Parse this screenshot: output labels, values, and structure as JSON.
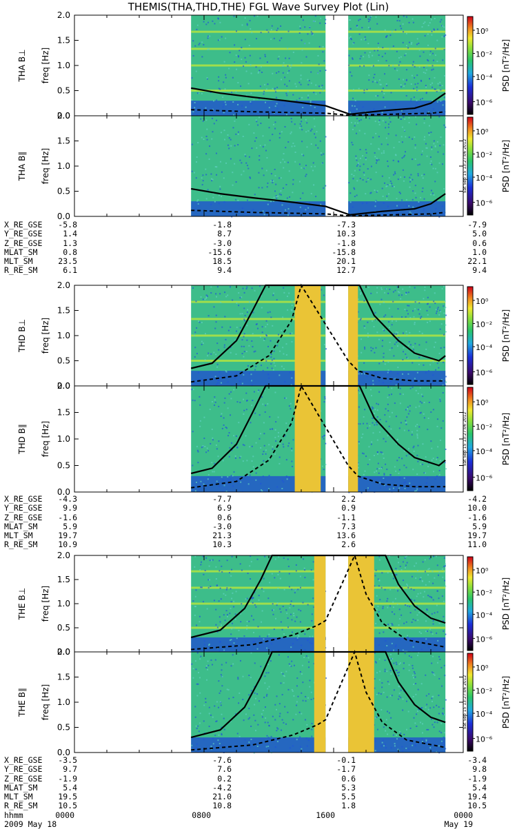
{
  "title": "THEMIS(THA,THD,THE) FGL Wave Survey Plot (Lin)",
  "colors": {
    "background": "#ffffff",
    "spectrogram_base": "#3dbd8a",
    "noise_blue": "#1e4bd2",
    "band_yellow": "#b9e63c",
    "curve": "#000000"
  },
  "colorbar": {
    "label": "PSD [nT²/Hz]",
    "ticks": [
      "10⁰",
      "10⁻²",
      "10⁻⁴",
      "10⁻⁶"
    ],
    "timestamp": "Sat Sep 15 13:27:06 2012"
  },
  "chart_data": {
    "type": "heatmap",
    "x_axis": {
      "label": "hhmm",
      "ticks": [
        "0000",
        "0800",
        "1600",
        "0000"
      ],
      "dates": [
        "2009 May 18",
        "",
        "",
        "May 19"
      ],
      "range_hours": [
        0,
        24
      ]
    },
    "data_intervals_hours": [
      [
        7.2,
        15.5
      ],
      [
        16.9,
        22.9
      ]
    ],
    "panels": [
      {
        "probe": "THA",
        "component": "B⊥",
        "ylabel": "THA B⊥",
        "yunit": "freq [Hz]",
        "ylim": [
          0,
          2.0
        ],
        "yticks": [
          "0.0",
          "0.5",
          "1.0",
          "1.5",
          "2.0"
        ],
        "bright_columns_hours": [],
        "solid_curve": {
          "x": [
            7.2,
            9,
            11,
            13,
            15.5,
            17,
            19,
            21,
            22,
            22.9
          ],
          "y": [
            0.55,
            0.45,
            0.37,
            0.3,
            0.2,
            0.03,
            0.1,
            0.15,
            0.25,
            0.45
          ]
        },
        "dashed_curve": {
          "x": [
            7.2,
            11,
            15.5,
            17,
            22,
            22.9
          ],
          "y": [
            0.12,
            0.08,
            0.05,
            0.01,
            0.05,
            0.08
          ]
        }
      },
      {
        "probe": "THA",
        "component": "B∥",
        "ylabel": "THA B∥",
        "yunit": "freq [Hz]",
        "ylim": [
          0,
          2.0
        ],
        "yticks": [
          "0.0",
          "0.5",
          "1.0",
          "1.5",
          "2.0"
        ],
        "bright_columns_hours": [],
        "solid_curve": {
          "x": [
            7.2,
            9,
            11,
            13,
            15.5,
            17,
            19,
            21,
            22,
            22.9
          ],
          "y": [
            0.55,
            0.45,
            0.37,
            0.3,
            0.2,
            0.03,
            0.1,
            0.15,
            0.25,
            0.45
          ]
        },
        "dashed_curve": {
          "x": [
            7.2,
            11,
            15.5,
            17,
            22,
            22.9
          ],
          "y": [
            0.12,
            0.08,
            0.05,
            0.01,
            0.05,
            0.08
          ]
        }
      },
      {
        "probe": "THD",
        "component": "B⊥",
        "ylabel": "THD B⊥",
        "yunit": "freq [Hz]",
        "ylim": [
          0,
          2.0
        ],
        "yticks": [
          "0.0",
          "0.5",
          "1.0",
          "1.5",
          "2.0"
        ],
        "bright_columns_hours": [
          [
            13.6,
            15.2
          ],
          [
            16.9,
            17.5
          ]
        ],
        "solid_curve": {
          "x": [
            7.2,
            8.5,
            10,
            11,
            11.8,
            17.6,
            18.5,
            20,
            21,
            22.5,
            22.9
          ],
          "y": [
            0.35,
            0.45,
            0.9,
            1.5,
            2.0,
            2.0,
            1.4,
            0.9,
            0.65,
            0.5,
            0.6
          ]
        },
        "dashed_curve": {
          "x": [
            7.2,
            10,
            12,
            13.4,
            14,
            16.9,
            17.5,
            19,
            21,
            22.9
          ],
          "y": [
            0.08,
            0.2,
            0.6,
            1.3,
            2.0,
            0.5,
            0.3,
            0.15,
            0.1,
            0.1
          ]
        }
      },
      {
        "probe": "THD",
        "component": "B∥",
        "ylabel": "THD B∥",
        "yunit": "freq [Hz]",
        "ylim": [
          0,
          2.0
        ],
        "yticks": [
          "0.0",
          "0.5",
          "1.0",
          "1.5",
          "2.0"
        ],
        "bright_columns_hours": [
          [
            13.6,
            15.2
          ],
          [
            16.9,
            17.5
          ]
        ],
        "solid_curve": {
          "x": [
            7.2,
            8.5,
            10,
            11,
            11.8,
            17.6,
            18.5,
            20,
            21,
            22.5,
            22.9
          ],
          "y": [
            0.35,
            0.45,
            0.9,
            1.5,
            2.0,
            2.0,
            1.4,
            0.9,
            0.65,
            0.5,
            0.6
          ]
        },
        "dashed_curve": {
          "x": [
            7.2,
            10,
            12,
            13.4,
            14,
            16.9,
            17.5,
            19,
            21,
            22.9
          ],
          "y": [
            0.08,
            0.2,
            0.6,
            1.3,
            2.0,
            0.5,
            0.3,
            0.15,
            0.1,
            0.1
          ]
        }
      },
      {
        "probe": "THE",
        "component": "B⊥",
        "ylabel": "THE B⊥",
        "yunit": "freq [Hz]",
        "ylim": [
          0,
          2.0
        ],
        "yticks": [
          "0.0",
          "0.5",
          "1.0",
          "1.5",
          "2.0"
        ],
        "bright_columns_hours": [
          [
            14.8,
            15.5
          ],
          [
            16.9,
            18.5
          ]
        ],
        "solid_curve": {
          "x": [
            7.2,
            9,
            10.5,
            11.5,
            12.2,
            19.2,
            20,
            21,
            22,
            22.9
          ],
          "y": [
            0.3,
            0.45,
            0.9,
            1.5,
            2.0,
            2.0,
            1.4,
            0.95,
            0.7,
            0.6
          ]
        },
        "dashed_curve": {
          "x": [
            7.2,
            11,
            13.5,
            15,
            15.5,
            17.3,
            18,
            19,
            20.5,
            22.9
          ],
          "y": [
            0.05,
            0.15,
            0.35,
            0.55,
            0.65,
            2.0,
            1.2,
            0.6,
            0.25,
            0.1
          ]
        }
      },
      {
        "probe": "THE",
        "component": "B∥",
        "ylabel": "THE B∥",
        "yunit": "freq [Hz]",
        "ylim": [
          0,
          2.0
        ],
        "yticks": [
          "0.0",
          "0.5",
          "1.0",
          "1.5",
          "2.0"
        ],
        "bright_columns_hours": [
          [
            14.8,
            15.5
          ],
          [
            16.9,
            18.5
          ]
        ],
        "solid_curve": {
          "x": [
            7.2,
            9,
            10.5,
            11.5,
            12.2,
            19.2,
            20,
            21,
            22,
            22.9
          ],
          "y": [
            0.3,
            0.45,
            0.9,
            1.5,
            2.0,
            2.0,
            1.4,
            0.95,
            0.7,
            0.6
          ]
        },
        "dashed_curve": {
          "x": [
            7.2,
            11,
            13.5,
            15,
            15.5,
            17.3,
            18,
            19,
            20.5,
            22.9
          ],
          "y": [
            0.05,
            0.15,
            0.35,
            0.55,
            0.65,
            2.0,
            1.2,
            0.6,
            0.25,
            0.1
          ]
        }
      }
    ]
  },
  "ephemeris": [
    {
      "probe": "THA",
      "rows": [
        {
          "label": "X_RE_GSE",
          "values": [
            "-5.8",
            "-1.8",
            "-7.3",
            "-7.9"
          ]
        },
        {
          "label": "Y_RE_GSE",
          "values": [
            "1.4",
            "8.7",
            "10.3",
            "5.0"
          ]
        },
        {
          "label": "Z_RE_GSE",
          "values": [
            "1.3",
            "-3.0",
            "-1.8",
            "0.6"
          ]
        },
        {
          "label": "MLAT_SM",
          "values": [
            "0.8",
            "-15.6",
            "-15.8",
            "1.0"
          ]
        },
        {
          "label": "MLT_SM",
          "values": [
            "23.5",
            "18.5",
            "20.1",
            "22.1"
          ]
        },
        {
          "label": "R_RE_SM",
          "values": [
            "6.1",
            "9.4",
            "12.7",
            "9.4"
          ]
        }
      ]
    },
    {
      "probe": "THD",
      "rows": [
        {
          "label": "X_RE_GSE",
          "values": [
            "-4.3",
            "-7.7",
            "2.2",
            "-4.2"
          ]
        },
        {
          "label": "Y_RE_GSE",
          "values": [
            "9.9",
            "6.9",
            "0.9",
            "10.0"
          ]
        },
        {
          "label": "Z_RE_GSE",
          "values": [
            "-1.6",
            "0.6",
            "-1.1",
            "-1.6"
          ]
        },
        {
          "label": "MLAT_SM",
          "values": [
            "5.9",
            "-3.0",
            "7.3",
            "5.9"
          ]
        },
        {
          "label": "MLT_SM",
          "values": [
            "19.7",
            "21.3",
            "13.6",
            "19.7"
          ]
        },
        {
          "label": "R_RE_SM",
          "values": [
            "10.9",
            "10.3",
            "2.6",
            "11.0"
          ]
        }
      ]
    },
    {
      "probe": "THE",
      "rows": [
        {
          "label": "X_RE_GSE",
          "values": [
            "-3.5",
            "-7.6",
            "-0.1",
            "-3.4"
          ]
        },
        {
          "label": "Y_RE_GSE",
          "values": [
            "9.7",
            "7.6",
            "-1.7",
            "9.8"
          ]
        },
        {
          "label": "Z_RE_GSE",
          "values": [
            "-1.9",
            "0.2",
            "0.6",
            "-1.9"
          ]
        },
        {
          "label": "MLAT_SM",
          "values": [
            "5.4",
            "-4.2",
            "5.3",
            "5.4"
          ]
        },
        {
          "label": "MLT_SM",
          "values": [
            "19.5",
            "21.0",
            "5.5",
            "19.4"
          ]
        },
        {
          "label": "R_RE_SM",
          "values": [
            "10.5",
            "10.8",
            "1.8",
            "10.5"
          ]
        }
      ]
    }
  ]
}
